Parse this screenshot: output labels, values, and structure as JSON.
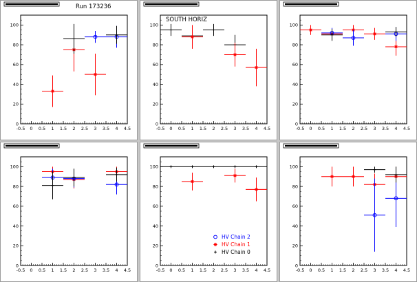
{
  "header": {
    "run_label": "Run 173236"
  },
  "legend": {
    "entries": [
      {
        "label": "HV Chain 2",
        "color": "#0000ff",
        "marker": "circle"
      },
      {
        "label": "HV Chain 1",
        "color": "#ff0000",
        "marker": "star"
      },
      {
        "label": "HV Chain 0",
        "color": "#000000",
        "marker": "plus"
      }
    ]
  },
  "colors": {
    "background": "#c8c8c8",
    "frame": "#ffffff",
    "axis": "#000000"
  },
  "chart_data": [
    {
      "type": "scatter",
      "title": "",
      "annotation": "",
      "xlim": [
        -0.5,
        4.5
      ],
      "ylim": [
        0,
        110
      ],
      "x_ticks": [
        -0.5,
        0,
        0.5,
        1,
        1.5,
        2,
        2.5,
        3,
        3.5,
        4,
        4.5
      ],
      "y_ticks": [
        0,
        20,
        40,
        60,
        80,
        100
      ],
      "series": [
        {
          "color": "#ff0000",
          "marker": "star",
          "points": [
            {
              "x": 1,
              "y": 33,
              "xerr": 0.5,
              "yerr": 16
            },
            {
              "x": 2,
              "y": 75,
              "xerr": 0.5,
              "yerr": 22
            },
            {
              "x": 3,
              "y": 50,
              "xerr": 0.5,
              "yerr": 21
            }
          ]
        },
        {
          "color": "#0000ff",
          "marker": "circle",
          "points": [
            {
              "x": 3,
              "y": 88,
              "xerr": 0.5,
              "yerr": 6
            },
            {
              "x": 4,
              "y": 88,
              "xerr": 0.5,
              "yerr": 11
            }
          ]
        },
        {
          "color": "#000000",
          "marker": "plus",
          "points": [
            {
              "x": 2,
              "y": 86,
              "xerr": 0.5,
              "yerr": 15
            },
            {
              "x": 4,
              "y": 90,
              "xerr": 0.5,
              "yerr": 9
            }
          ]
        }
      ]
    },
    {
      "type": "scatter",
      "title": "",
      "annotation": "SOUTH HORIZ",
      "xlim": [
        -0.5,
        4.5
      ],
      "ylim": [
        0,
        110
      ],
      "x_ticks": [
        -0.5,
        0,
        0.5,
        1,
        1.5,
        2,
        2.5,
        3,
        3.5,
        4,
        4.5
      ],
      "y_ticks": [
        0,
        20,
        40,
        60,
        80,
        100
      ],
      "series": [
        {
          "color": "#000000",
          "marker": "plus",
          "points": [
            {
              "x": 0,
              "y": 95,
              "xerr": 0.5,
              "yerr": 6
            },
            {
              "x": 1,
              "y": 89,
              "xerr": 0.5,
              "yerr": 9
            },
            {
              "x": 2,
              "y": 95,
              "xerr": 0.5,
              "yerr": 6
            },
            {
              "x": 3,
              "y": 80,
              "xerr": 0.5,
              "yerr": 10
            }
          ]
        },
        {
          "color": "#ff0000",
          "marker": "star",
          "points": [
            {
              "x": 1,
              "y": 88,
              "xerr": 0.5,
              "yerr": 12
            },
            {
              "x": 3,
              "y": 70,
              "xerr": 0.5,
              "yerr": 12
            },
            {
              "x": 4,
              "y": 57,
              "xerr": 0.5,
              "yerr": 19
            }
          ]
        }
      ]
    },
    {
      "type": "scatter",
      "title": "",
      "annotation": "",
      "xlim": [
        -0.5,
        4.5
      ],
      "ylim": [
        0,
        110
      ],
      "x_ticks": [
        -0.5,
        0,
        0.5,
        1,
        1.5,
        2,
        2.5,
        3,
        3.5,
        4,
        4.5
      ],
      "y_ticks": [
        0,
        20,
        40,
        60,
        80,
        100
      ],
      "series": [
        {
          "color": "#ff0000",
          "marker": "star",
          "points": [
            {
              "x": 0,
              "y": 95,
              "xerr": 0.5,
              "yerr": 5
            },
            {
              "x": 1,
              "y": 91,
              "xerr": 0.5,
              "yerr": 5
            },
            {
              "x": 2,
              "y": 95,
              "xerr": 0.5,
              "yerr": 5
            },
            {
              "x": 3,
              "y": 91,
              "xerr": 0.5,
              "yerr": 6
            },
            {
              "x": 4,
              "y": 78,
              "xerr": 0.5,
              "yerr": 9
            }
          ]
        },
        {
          "color": "#0000ff",
          "marker": "circle",
          "points": [
            {
              "x": 1,
              "y": 92,
              "xerr": 0.5,
              "yerr": 5
            },
            {
              "x": 2,
              "y": 87,
              "xerr": 0.5,
              "yerr": 8
            },
            {
              "x": 4,
              "y": 91,
              "xerr": 0.5,
              "yerr": 7
            }
          ]
        },
        {
          "color": "#000000",
          "marker": "plus",
          "points": [
            {
              "x": 1,
              "y": 90,
              "xerr": 0.5,
              "yerr": 6
            },
            {
              "x": 4,
              "y": 93,
              "xerr": 0.5,
              "yerr": 5
            }
          ]
        }
      ]
    },
    {
      "type": "scatter",
      "title": "",
      "annotation": "",
      "xlim": [
        -0.5,
        4.5
      ],
      "ylim": [
        0,
        110
      ],
      "x_ticks": [
        -0.5,
        0,
        0.5,
        1,
        1.5,
        2,
        2.5,
        3,
        3.5,
        4,
        4.5
      ],
      "y_ticks": [
        0,
        20,
        40,
        60,
        80,
        100
      ],
      "series": [
        {
          "color": "#ff0000",
          "marker": "star",
          "points": [
            {
              "x": 1,
              "y": 95,
              "xerr": 0.5,
              "yerr": 5
            },
            {
              "x": 2,
              "y": 87,
              "xerr": 0.5,
              "yerr": 9
            },
            {
              "x": 4,
              "y": 95,
              "xerr": 0.5,
              "yerr": 5
            }
          ]
        },
        {
          "color": "#0000ff",
          "marker": "circle",
          "points": [
            {
              "x": 1,
              "y": 89,
              "xerr": 0.5,
              "yerr": 9
            },
            {
              "x": 2,
              "y": 88,
              "xerr": 0.5,
              "yerr": 9
            },
            {
              "x": 4,
              "y": 82,
              "xerr": 0.5,
              "yerr": 10
            }
          ]
        },
        {
          "color": "#000000",
          "marker": "plus",
          "points": [
            {
              "x": 1,
              "y": 81,
              "xerr": 0.5,
              "yerr": 14
            },
            {
              "x": 2,
              "y": 89,
              "xerr": 0.5,
              "yerr": 9
            },
            {
              "x": 4,
              "y": 92,
              "xerr": 0.5,
              "yerr": 7
            }
          ]
        }
      ]
    },
    {
      "type": "scatter",
      "title": "",
      "annotation": "",
      "xlim": [
        -0.5,
        4.5
      ],
      "ylim": [
        0,
        110
      ],
      "x_ticks": [
        -0.5,
        0,
        0.5,
        1,
        1.5,
        2,
        2.5,
        3,
        3.5,
        4,
        4.5
      ],
      "y_ticks": [
        0,
        20,
        40,
        60,
        80,
        100
      ],
      "show_legend": true,
      "series": [
        {
          "color": "#000000",
          "marker": "plus",
          "points": [
            {
              "x": 0,
              "y": 100,
              "xerr": 0.5,
              "yerr": 0
            },
            {
              "x": 1,
              "y": 100,
              "xerr": 0.5,
              "yerr": 0
            },
            {
              "x": 2,
              "y": 100,
              "xerr": 0.5,
              "yerr": 0
            },
            {
              "x": 3,
              "y": 100,
              "xerr": 0.5,
              "yerr": 0
            },
            {
              "x": 4,
              "y": 100,
              "xerr": 0.5,
              "yerr": 0
            }
          ]
        },
        {
          "color": "#ff0000",
          "marker": "star",
          "points": [
            {
              "x": 1,
              "y": 85,
              "xerr": 0.5,
              "yerr": 9
            },
            {
              "x": 3,
              "y": 91,
              "xerr": 0.5,
              "yerr": 7
            },
            {
              "x": 4,
              "y": 77,
              "xerr": 0.5,
              "yerr": 12
            }
          ]
        }
      ]
    },
    {
      "type": "scatter",
      "title": "",
      "annotation": "",
      "xlim": [
        -0.5,
        4.5
      ],
      "ylim": [
        0,
        110
      ],
      "x_ticks": [
        -0.5,
        0,
        0.5,
        1,
        1.5,
        2,
        2.5,
        3,
        3.5,
        4,
        4.5
      ],
      "y_ticks": [
        0,
        20,
        40,
        60,
        80,
        100
      ],
      "series": [
        {
          "color": "#ff0000",
          "marker": "star",
          "points": [
            {
              "x": 1,
              "y": 90,
              "xerr": 0.5,
              "yerr": 10
            },
            {
              "x": 2,
              "y": 90,
              "xerr": 0.5,
              "yerr": 10
            },
            {
              "x": 3,
              "y": 82,
              "xerr": 0.5,
              "yerr": 11
            },
            {
              "x": 4,
              "y": 90,
              "xerr": 0.5,
              "yerr": 10
            }
          ]
        },
        {
          "color": "#0000ff",
          "marker": "circle",
          "points": [
            {
              "x": 3,
              "y": 51,
              "xerr": 0.5,
              "yerr": 37
            },
            {
              "x": 4,
              "y": 68,
              "xerr": 0.5,
              "yerr": 29
            }
          ]
        },
        {
          "color": "#000000",
          "marker": "plus",
          "points": [
            {
              "x": 3,
              "y": 97,
              "xerr": 0.5,
              "yerr": 3
            },
            {
              "x": 4,
              "y": 92,
              "xerr": 0.5,
              "yerr": 8
            }
          ]
        }
      ]
    }
  ]
}
